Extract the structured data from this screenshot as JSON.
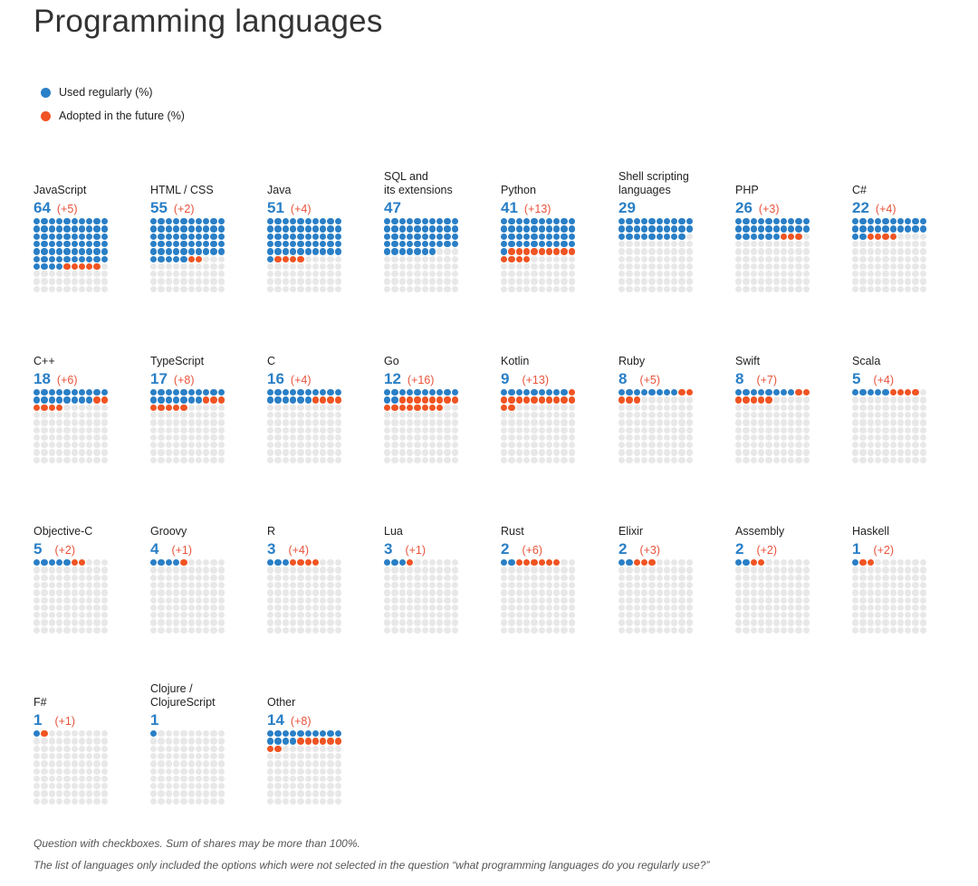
{
  "title": "Programming languages",
  "colors": {
    "used": "#2a7fc6",
    "future": "#f05423",
    "empty": "#e8e8e8"
  },
  "legend": [
    {
      "label": "Used regularly (%)",
      "key": "used"
    },
    {
      "label": "Adopted in the future (%)",
      "key": "future"
    }
  ],
  "footnotes": [
    "Question with checkboxes. Sum of shares may be more than 100%.",
    "The list of languages only included the options which were not selected in the question “what programming languages do you regularly use?”"
  ],
  "chart_data": {
    "type": "waffle",
    "title": "Programming languages",
    "units": "%",
    "grid": "10x10",
    "series": [
      {
        "name": "Used regularly (%)",
        "key": "used"
      },
      {
        "name": "Adopted in the future (%)",
        "key": "future"
      }
    ],
    "items": [
      {
        "name": "JavaScript",
        "used": 64,
        "future": 5,
        "used_label": "64",
        "future_label": "(+5)"
      },
      {
        "name": "HTML / CSS",
        "used": 55,
        "future": 2,
        "used_label": "55",
        "future_label": "(+2)"
      },
      {
        "name": "Java",
        "used": 51,
        "future": 4,
        "used_label": "51",
        "future_label": "(+4)"
      },
      {
        "name": "SQL and\nits extensions",
        "used": 47,
        "future": 0,
        "used_label": "47",
        "future_label": ""
      },
      {
        "name": "Python",
        "used": 41,
        "future": 13,
        "used_label": "41",
        "future_label": "(+13)"
      },
      {
        "name": "Shell scripting\nlanguages",
        "used": 29,
        "future": 0,
        "used_label": "29",
        "future_label": ""
      },
      {
        "name": "PHP",
        "used": 26,
        "future": 3,
        "used_label": "26",
        "future_label": "(+3)"
      },
      {
        "name": "C#",
        "used": 22,
        "future": 4,
        "used_label": "22",
        "future_label": "(+4)"
      },
      {
        "name": "C++",
        "used": 18,
        "future": 6,
        "used_label": "18",
        "future_label": "(+6)"
      },
      {
        "name": "TypeScript",
        "used": 17,
        "future": 8,
        "used_label": "17",
        "future_label": "(+8)"
      },
      {
        "name": "C",
        "used": 16,
        "future": 4,
        "used_label": "16",
        "future_label": "(+4)"
      },
      {
        "name": "Go",
        "used": 12,
        "future": 16,
        "used_label": "12",
        "future_label": "(+16)"
      },
      {
        "name": "Kotlin",
        "used": 9,
        "future": 13,
        "used_label": "9",
        "future_label": "(+13)"
      },
      {
        "name": "Ruby",
        "used": 8,
        "future": 5,
        "used_label": "8",
        "future_label": "(+5)"
      },
      {
        "name": "Swift",
        "used": 8,
        "future": 7,
        "used_label": "8",
        "future_label": "(+7)"
      },
      {
        "name": "Scala",
        "used": 5,
        "future": 4,
        "used_label": "5",
        "future_label": "(+4)"
      },
      {
        "name": "Objective-C",
        "used": 5,
        "future": 2,
        "used_label": "5",
        "future_label": "(+2)"
      },
      {
        "name": "Groovy",
        "used": 4,
        "future": 1,
        "used_label": "4",
        "future_label": "(+1)"
      },
      {
        "name": "R",
        "used": 3,
        "future": 4,
        "used_label": "3",
        "future_label": "(+4)"
      },
      {
        "name": "Lua",
        "used": 3,
        "future": 1,
        "used_label": "3",
        "future_label": "(+1)"
      },
      {
        "name": "Rust",
        "used": 2,
        "future": 6,
        "used_label": "2",
        "future_label": "(+6)"
      },
      {
        "name": "Elixir",
        "used": 2,
        "future": 3,
        "used_label": "2",
        "future_label": "(+3)"
      },
      {
        "name": "Assembly",
        "used": 2,
        "future": 2,
        "used_label": "2",
        "future_label": "(+2)"
      },
      {
        "name": "Haskell",
        "used": 1,
        "future": 2,
        "used_label": "1",
        "future_label": "(+2)"
      },
      {
        "name": "F#",
        "used": 1,
        "future": 1,
        "used_label": "1",
        "future_label": "(+1)"
      },
      {
        "name": "Clojure /\nClojureScript",
        "used": 1,
        "future": 0,
        "used_label": "1",
        "future_label": ""
      },
      {
        "name": "Other",
        "used": 14,
        "future": 8,
        "used_label": "14",
        "future_label": "(+8)"
      }
    ]
  }
}
